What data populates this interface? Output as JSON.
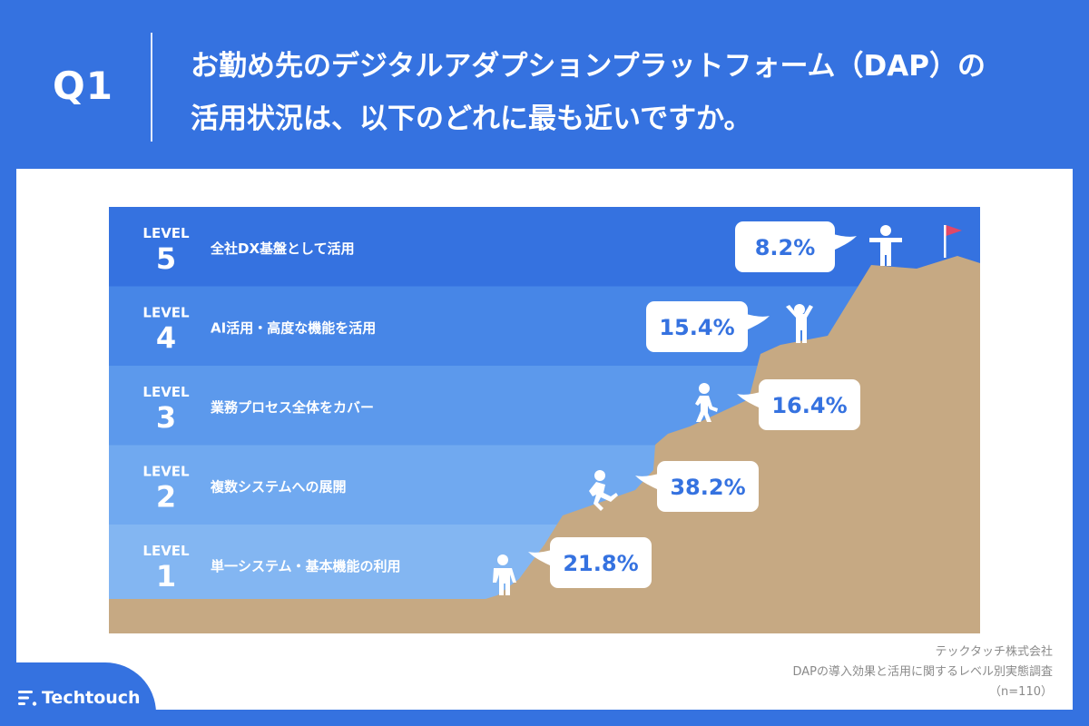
{
  "question": {
    "label": "Q1",
    "line1": "お勤め先のデジタルアダプションプラットフォーム（DAP）の",
    "line2": "活用状況は、以下のどれに最も近いですか。"
  },
  "chart_data": {
    "type": "bar",
    "categories": [
      "全社DX基盤として活用",
      "AI活用・高度な機能を活用",
      "業務プロセス全体をカバー",
      "複数システムへの展開",
      "単一システム・基本機能の利用"
    ],
    "level_prefix": "LEVEL",
    "levels": [
      5,
      4,
      3,
      2,
      1
    ],
    "values": [
      8.2,
      15.4,
      16.4,
      38.2,
      21.8
    ],
    "value_labels": [
      "8.2%",
      "15.4%",
      "16.4%",
      "38.2%",
      "21.8%"
    ],
    "title": "",
    "xlabel": "",
    "ylabel": "",
    "colors": {
      "band_5": "#3572e0",
      "band_4": "#4786e7",
      "band_3": "#5c99ec",
      "band_2": "#70a9f0",
      "band_1": "#83b6f2",
      "mountain": "#c6a983",
      "flag": "#e04868"
    }
  },
  "source": {
    "company": "テックタッチ株式会社",
    "survey": "DAPの導入効果と活用に関するレベル別実態調査",
    "sample": "（n=110）"
  },
  "logo": {
    "text": "Techtouch"
  }
}
